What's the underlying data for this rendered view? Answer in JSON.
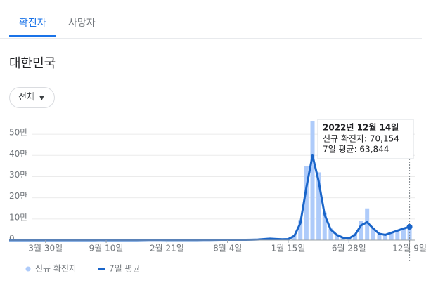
{
  "tabs": [
    "확진자",
    "사망자"
  ],
  "region": "대한민국",
  "dropdown": "전체",
  "chart_data": {
    "type": "bar-line",
    "categories": [
      null,
      null,
      null,
      null,
      null,
      null,
      "3월 30일",
      null,
      null,
      null,
      null,
      null,
      null,
      null,
      null,
      null,
      "9월 10일",
      null,
      null,
      null,
      null,
      null,
      null,
      null,
      null,
      null,
      "2월 21일",
      null,
      null,
      null,
      null,
      null,
      null,
      null,
      null,
      null,
      "8월 4일",
      null,
      null,
      null,
      null,
      null,
      null,
      null,
      null,
      null,
      "1월 15일",
      null,
      null,
      null,
      null,
      null,
      null,
      null,
      null,
      null,
      "6월 28일",
      null,
      null,
      null,
      null,
      null,
      null,
      null,
      null,
      null,
      "12월 9일"
    ],
    "series": [
      {
        "name": "신규 확진자",
        "color": "#aecbfa",
        "values": [
          0,
          0,
          0,
          0,
          200,
          600,
          100,
          40,
          20,
          50,
          30,
          60,
          40,
          30,
          300,
          200,
          150,
          110,
          120,
          70,
          110,
          250,
          450,
          800,
          1100,
          600,
          500,
          350,
          500,
          450,
          700,
          500,
          700,
          800,
          1300,
          1700,
          1800,
          1900,
          1500,
          1800,
          2100,
          3000,
          5300,
          7400,
          5000,
          3800,
          5800,
          25000,
          95000,
          350000,
          560000,
          320000,
          130000,
          55000,
          28000,
          11000,
          9000,
          30000,
          90000,
          150000,
          60000,
          28000,
          27000,
          40000,
          48000,
          60000,
          70000
        ]
      },
      {
        "name": "7일 평균",
        "color": "#1a65c9",
        "values": [
          0,
          0,
          0,
          0,
          150,
          500,
          100,
          30,
          20,
          40,
          40,
          50,
          50,
          40,
          200,
          250,
          150,
          120,
          100,
          80,
          100,
          200,
          400,
          700,
          1000,
          700,
          450,
          400,
          450,
          500,
          600,
          550,
          650,
          700,
          1200,
          1500,
          1700,
          1800,
          1600,
          1700,
          2000,
          2800,
          5000,
          7000,
          5500,
          4000,
          5000,
          20000,
          80000,
          250000,
          400000,
          280000,
          120000,
          50000,
          25000,
          12000,
          8000,
          25000,
          70000,
          85000,
          55000,
          30000,
          25000,
          35000,
          45000,
          55000,
          63000
        ]
      }
    ],
    "ylim": [
      0,
      570000
    ],
    "yticks": [
      0,
      {
        "value": 100000,
        "label": "10만"
      },
      {
        "value": 200000,
        "label": "20만"
      },
      {
        "value": 300000,
        "label": "30만"
      },
      {
        "value": 400000,
        "label": "40만"
      },
      {
        "value": 500000,
        "label": "50만"
      }
    ],
    "grid": true,
    "tooltip": {
      "title": "2022년 12월 14일",
      "lines": [
        "신규 확진자: 70,154",
        "7일 평균: 63,844"
      ]
    }
  }
}
